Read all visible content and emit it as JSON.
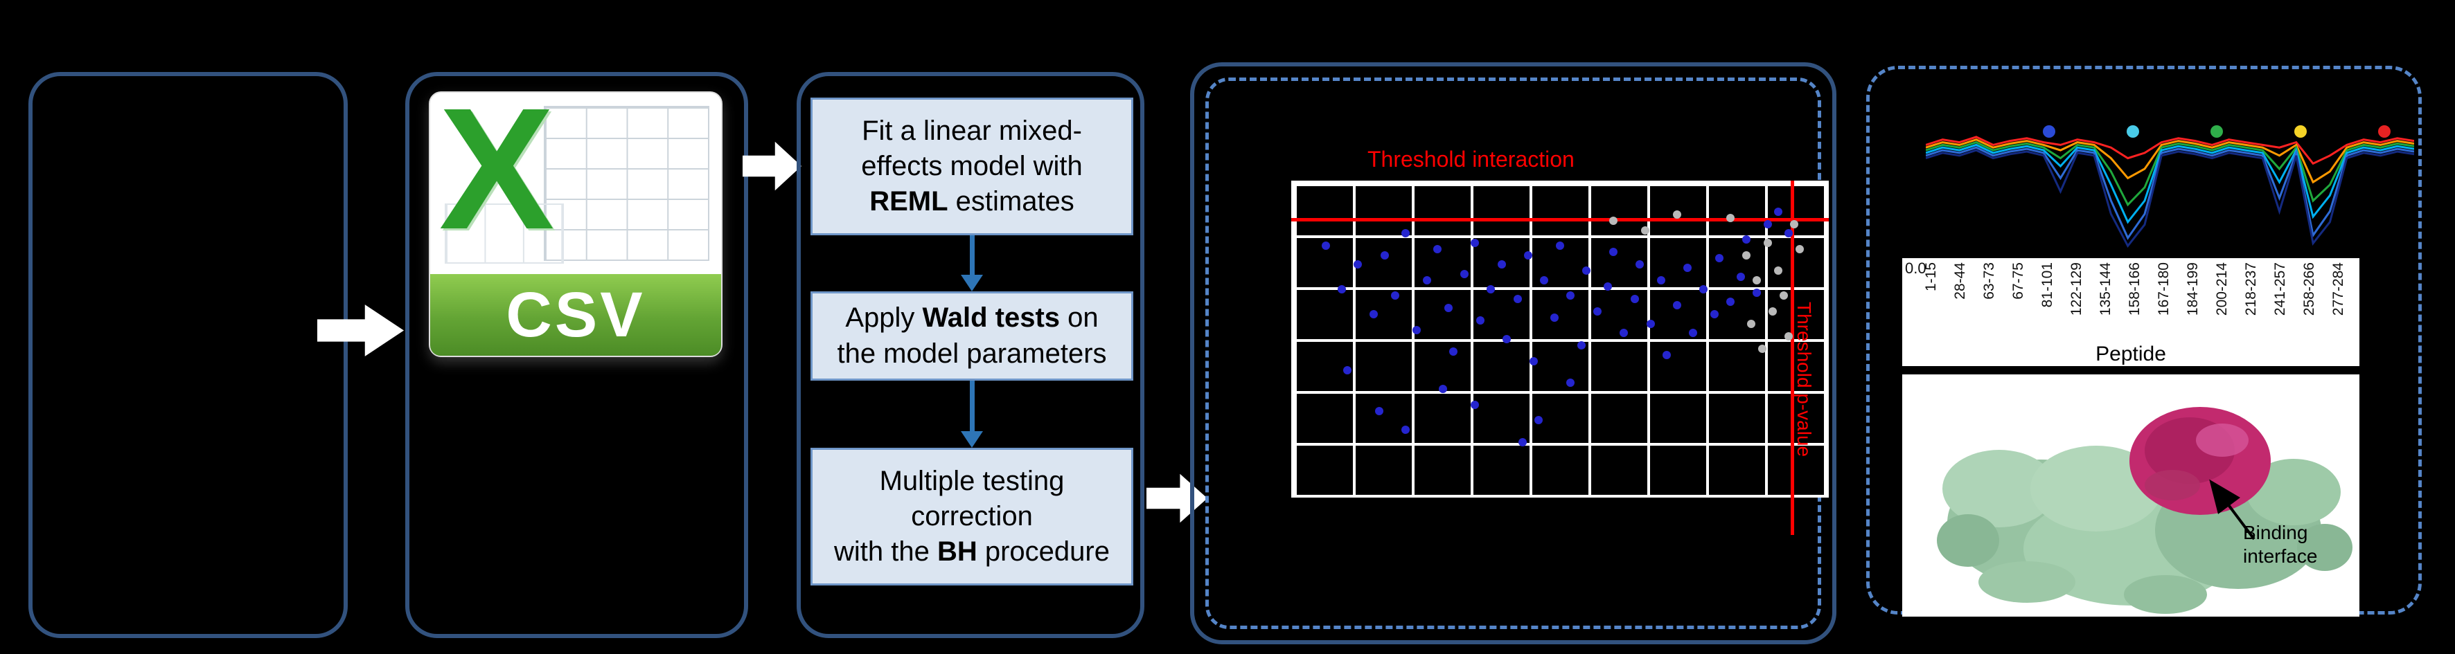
{
  "colors": {
    "background": "#000000",
    "panel_border": "#32527e",
    "dashed_border": "#5585c8",
    "step_fill": "#dbe5f1",
    "flow_arrow": "#2e75b6",
    "block_arrow": "#ffffff",
    "threshold_red": "#ff0000"
  },
  "csv_icon": {
    "letter": "X",
    "label": "CSV"
  },
  "steps": [
    {
      "lines": [
        [
          {
            "t": "Fit a linear mixed-"
          }
        ],
        [
          {
            "t": "effects model with"
          }
        ],
        [
          {
            "t": "REML",
            "b": true
          },
          {
            "t": " estimates"
          }
        ]
      ]
    },
    {
      "lines": [
        [
          {
            "t": "Apply "
          },
          {
            "t": "Wald tests",
            "b": true
          },
          {
            "t": " on"
          }
        ],
        [
          {
            "t": "the model parameters"
          }
        ]
      ]
    },
    {
      "lines": [
        [
          {
            "t": "Multiple testing"
          }
        ],
        [
          {
            "t": "correction"
          }
        ],
        [
          {
            "t": "with the "
          },
          {
            "t": "BH",
            "b": true
          },
          {
            "t": " procedure"
          }
        ]
      ]
    }
  ],
  "protein": {
    "binding_label": [
      "Binding",
      "interface"
    ]
  },
  "chart_data": [
    {
      "type": "scatter",
      "title": "",
      "annotations": [
        "Threshold interaction",
        "Threshold p-value"
      ],
      "grid": true,
      "coords": "relative 0-1, origin top-left of plot area",
      "thresholds": {
        "h_line_y_rel": 0.115,
        "v_line_x_rel": 0.936
      },
      "series": [
        {
          "name": "interaction-points",
          "color": "#2525cf",
          "points": [
            [
              0.06,
              0.2
            ],
            [
              0.09,
              0.34
            ],
            [
              0.12,
              0.26
            ],
            [
              0.15,
              0.42
            ],
            [
              0.17,
              0.23
            ],
            [
              0.19,
              0.36
            ],
            [
              0.21,
              0.16
            ],
            [
              0.23,
              0.47
            ],
            [
              0.25,
              0.31
            ],
            [
              0.27,
              0.21
            ],
            [
              0.29,
              0.4
            ],
            [
              0.3,
              0.54
            ],
            [
              0.32,
              0.29
            ],
            [
              0.34,
              0.19
            ],
            [
              0.35,
              0.44
            ],
            [
              0.37,
              0.34
            ],
            [
              0.39,
              0.26
            ],
            [
              0.4,
              0.5
            ],
            [
              0.42,
              0.37
            ],
            [
              0.44,
              0.23
            ],
            [
              0.45,
              0.57
            ],
            [
              0.47,
              0.31
            ],
            [
              0.49,
              0.43
            ],
            [
              0.5,
              0.2
            ],
            [
              0.52,
              0.36
            ],
            [
              0.54,
              0.52
            ],
            [
              0.55,
              0.28
            ],
            [
              0.57,
              0.41
            ],
            [
              0.59,
              0.33
            ],
            [
              0.6,
              0.22
            ],
            [
              0.62,
              0.48
            ],
            [
              0.64,
              0.37
            ],
            [
              0.65,
              0.26
            ],
            [
              0.67,
              0.45
            ],
            [
              0.69,
              0.31
            ],
            [
              0.7,
              0.55
            ],
            [
              0.72,
              0.39
            ],
            [
              0.74,
              0.27
            ],
            [
              0.75,
              0.48
            ],
            [
              0.77,
              0.34
            ],
            [
              0.79,
              0.42
            ],
            [
              0.8,
              0.24
            ],
            [
              0.82,
              0.38
            ],
            [
              0.84,
              0.3
            ],
            [
              0.85,
              0.18
            ],
            [
              0.87,
              0.35
            ],
            [
              0.89,
              0.13
            ],
            [
              0.91,
              0.09
            ],
            [
              0.93,
              0.16
            ],
            [
              0.16,
              0.73
            ],
            [
              0.21,
              0.79
            ],
            [
              0.34,
              0.71
            ],
            [
              0.43,
              0.83
            ],
            [
              0.46,
              0.76
            ],
            [
              0.28,
              0.66
            ],
            [
              0.1,
              0.6
            ],
            [
              0.52,
              0.64
            ]
          ]
        },
        {
          "name": "nonsignificant-points",
          "color": "#b9b9b9",
          "points": [
            [
              0.82,
              0.11
            ],
            [
              0.85,
              0.23
            ],
            [
              0.87,
              0.31
            ],
            [
              0.89,
              0.19
            ],
            [
              0.9,
              0.41
            ],
            [
              0.91,
              0.28
            ],
            [
              0.92,
              0.36
            ],
            [
              0.94,
              0.13
            ],
            [
              0.95,
              0.21
            ],
            [
              0.93,
              0.49
            ],
            [
              0.88,
              0.53
            ],
            [
              0.86,
              0.45
            ],
            [
              0.6,
              0.12
            ],
            [
              0.66,
              0.15
            ],
            [
              0.72,
              0.1
            ]
          ]
        }
      ]
    },
    {
      "type": "line",
      "xlabel": "Peptide",
      "x_tick_labels": [
        "1-15",
        "28-44",
        "63-73",
        "67-75",
        "81-101",
        "122-129",
        "135-144",
        "158-166",
        "167-180",
        "184-199",
        "200-214",
        "218-237",
        "241-257",
        "258-266",
        "277-284"
      ],
      "y_tick_labels": [
        "0.0"
      ],
      "legend_dot_colors": [
        "#2b4bd7",
        "#49cbe8",
        "#2fae4a",
        "#f5d327",
        "#e82222"
      ],
      "series": [
        {
          "name": "series-red",
          "color": "#ff2222",
          "values": [
            0.8,
            0.84,
            0.82,
            0.86,
            0.8,
            0.83,
            0.85,
            0.82,
            0.8,
            0.84,
            0.82,
            0.78,
            0.7,
            0.74,
            0.82,
            0.85,
            0.83,
            0.8,
            0.84,
            0.82,
            0.8,
            0.78,
            0.82,
            0.66,
            0.72,
            0.8,
            0.84,
            0.82,
            0.85,
            0.83
          ]
        },
        {
          "name": "series-orange",
          "color": "#ff9900",
          "values": [
            0.78,
            0.82,
            0.8,
            0.84,
            0.78,
            0.81,
            0.83,
            0.8,
            0.76,
            0.82,
            0.8,
            0.7,
            0.55,
            0.62,
            0.8,
            0.83,
            0.81,
            0.78,
            0.82,
            0.8,
            0.78,
            0.72,
            0.8,
            0.52,
            0.6,
            0.78,
            0.82,
            0.8,
            0.83,
            0.81
          ]
        },
        {
          "name": "series-green",
          "color": "#1fa83c",
          "values": [
            0.76,
            0.8,
            0.78,
            0.82,
            0.76,
            0.79,
            0.81,
            0.78,
            0.7,
            0.8,
            0.78,
            0.6,
            0.35,
            0.48,
            0.78,
            0.81,
            0.79,
            0.76,
            0.8,
            0.78,
            0.76,
            0.62,
            0.78,
            0.38,
            0.5,
            0.76,
            0.8,
            0.78,
            0.81,
            0.79
          ]
        },
        {
          "name": "series-cyan",
          "color": "#00b0f0",
          "values": [
            0.74,
            0.78,
            0.76,
            0.8,
            0.74,
            0.77,
            0.79,
            0.76,
            0.64,
            0.78,
            0.76,
            0.5,
            0.22,
            0.38,
            0.76,
            0.79,
            0.77,
            0.74,
            0.78,
            0.76,
            0.74,
            0.52,
            0.76,
            0.26,
            0.42,
            0.74,
            0.78,
            0.76,
            0.79,
            0.77
          ]
        },
        {
          "name": "series-blue",
          "color": "#2e6bd6",
          "values": [
            0.72,
            0.76,
            0.74,
            0.78,
            0.72,
            0.75,
            0.77,
            0.74,
            0.55,
            0.76,
            0.74,
            0.38,
            0.1,
            0.28,
            0.74,
            0.77,
            0.75,
            0.72,
            0.76,
            0.74,
            0.72,
            0.4,
            0.74,
            0.12,
            0.3,
            0.72,
            0.76,
            0.74,
            0.77,
            0.75
          ]
        },
        {
          "name": "series-navy",
          "color": "#142a80",
          "values": [
            0.7,
            0.74,
            0.72,
            0.76,
            0.7,
            0.73,
            0.75,
            0.72,
            0.45,
            0.74,
            0.72,
            0.28,
            0.04,
            0.2,
            0.72,
            0.75,
            0.73,
            0.7,
            0.74,
            0.72,
            0.7,
            0.3,
            0.72,
            0.06,
            0.22,
            0.7,
            0.74,
            0.72,
            0.75,
            0.73
          ]
        }
      ]
    }
  ]
}
